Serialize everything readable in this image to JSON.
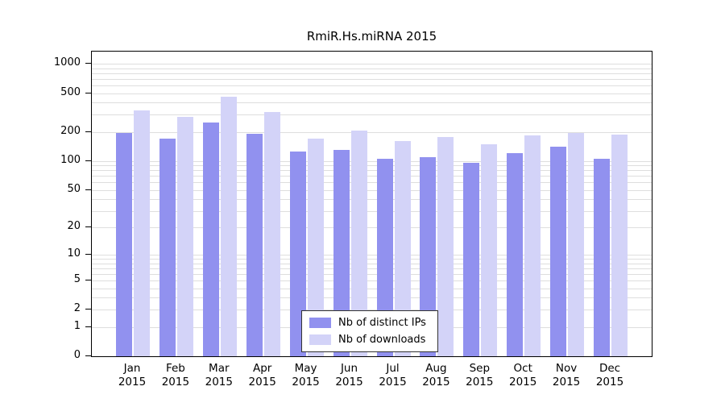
{
  "title": "RmiR.Hs.miRNA 2015",
  "chart_data": {
    "type": "bar",
    "title": "RmiR.Hs.miRNA 2015",
    "categories": [
      "Jan 2015",
      "Feb 2015",
      "Mar 2015",
      "Apr 2015",
      "May 2015",
      "Jun 2015",
      "Jul 2015",
      "Aug 2015",
      "Sep 2015",
      "Oct 2015",
      "Nov 2015",
      "Dec 2015"
    ],
    "series": [
      {
        "name": "Nb of distinct IPs",
        "color": "#9191ef",
        "values": [
          195,
          170,
          250,
          190,
          125,
          130,
          105,
          110,
          95,
          120,
          140,
          105
        ]
      },
      {
        "name": "Nb of downloads",
        "color": "#d3d3f8",
        "values": [
          330,
          285,
          460,
          320,
          170,
          205,
          160,
          175,
          150,
          185,
          195,
          186
        ]
      }
    ],
    "xlabel": "",
    "ylabel": "",
    "yticks": [
      0,
      1,
      2,
      5,
      10,
      20,
      50,
      100,
      200,
      500,
      1000
    ],
    "ylim": [
      0,
      1000
    ],
    "yscale": "log10(value+1)",
    "grid": true,
    "legend_position": "inside-bottom-center"
  },
  "x_axis": {
    "months": [
      "Jan",
      "Feb",
      "Mar",
      "Apr",
      "May",
      "Jun",
      "Jul",
      "Aug",
      "Sep",
      "Oct",
      "Nov",
      "Dec"
    ],
    "year": "2015"
  },
  "legend": {
    "items": [
      "Nb of distinct IPs",
      "Nb of downloads"
    ]
  }
}
